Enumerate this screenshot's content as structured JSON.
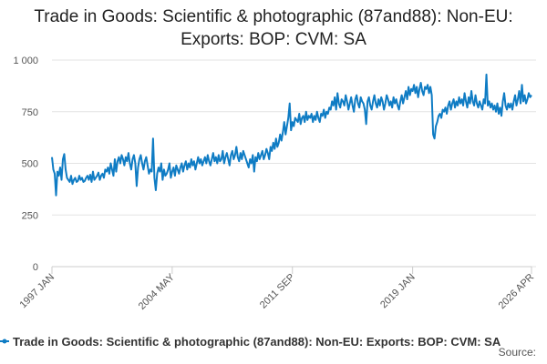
{
  "chart_data": {
    "type": "line",
    "title": "Trade in Goods: Scientific & photographic (87and88): Non-EU: Exports: BOP: CVM: SA",
    "source": "Source:",
    "categories": [
      "1997 JAN",
      null,
      null,
      null,
      null,
      null,
      null,
      null,
      null,
      null,
      null,
      null,
      null,
      null,
      null,
      null,
      null,
      null,
      null,
      null,
      null,
      null,
      null,
      null,
      null,
      null,
      null,
      null,
      null,
      null,
      null,
      null,
      null,
      null,
      null,
      null,
      null,
      null,
      null,
      null,
      null,
      null,
      null,
      null,
      null,
      null,
      null,
      null,
      null,
      null,
      null,
      null,
      null,
      null,
      null,
      null,
      null,
      null,
      null,
      null,
      null,
      null,
      null,
      null,
      null,
      null,
      null,
      null,
      null,
      null,
      null,
      null,
      null,
      null,
      null,
      null,
      null,
      null,
      null,
      null,
      null,
      null,
      null,
      null,
      null,
      null,
      null,
      null,
      "2004 MAY",
      null,
      null,
      null,
      null,
      null,
      null,
      null,
      null,
      null,
      null,
      null,
      null,
      null,
      null,
      null,
      null,
      null,
      null,
      null,
      null,
      null,
      null,
      null,
      null,
      null,
      null,
      null,
      null,
      null,
      null,
      null,
      null,
      null,
      null,
      null,
      null,
      null,
      null,
      null,
      null,
      null,
      null,
      null,
      null,
      null,
      null,
      null,
      null,
      null,
      null,
      null,
      null,
      null,
      null,
      null,
      null,
      null,
      null,
      null,
      null,
      null,
      null,
      null,
      null,
      null,
      null,
      null,
      null,
      null,
      null,
      null,
      null,
      null,
      null,
      null,
      null,
      null,
      null,
      null,
      null,
      null,
      null,
      null,
      null,
      null,
      null,
      null,
      "2011 SEP",
      null,
      null,
      null,
      null,
      null,
      null,
      null,
      null,
      null,
      null,
      null,
      null,
      null,
      null,
      null,
      null,
      null,
      null,
      null,
      null,
      null,
      null,
      null,
      null,
      null,
      null,
      null,
      null,
      null,
      null,
      null,
      null,
      null,
      null,
      null,
      null,
      null,
      null,
      null,
      null,
      null,
      null,
      null,
      null,
      null,
      null,
      null,
      null,
      null,
      null,
      null,
      null,
      null,
      null,
      null,
      null,
      null,
      null,
      null,
      null,
      null,
      null,
      null,
      null,
      null,
      null,
      null,
      null,
      null,
      null,
      null,
      null,
      null,
      null,
      null,
      null,
      null,
      null,
      null,
      null,
      null,
      null,
      null,
      null,
      null,
      null,
      null,
      "2019 JAN",
      null,
      null,
      null,
      null,
      null,
      null,
      null,
      null,
      null,
      null,
      null,
      null,
      null,
      null,
      null,
      null,
      null,
      null,
      null,
      null,
      null,
      null,
      null,
      null,
      null,
      null,
      null,
      null,
      null,
      null,
      null,
      null,
      null,
      null,
      null,
      null,
      null,
      null,
      null,
      null,
      null,
      null,
      null,
      null,
      null,
      null,
      null,
      null,
      null,
      null,
      null,
      null,
      null,
      null,
      null,
      null,
      null,
      null,
      null,
      null,
      null,
      null,
      null,
      null,
      null,
      null,
      null,
      null,
      null,
      null,
      null,
      null,
      null,
      null,
      null,
      null,
      null,
      null,
      null,
      null,
      null,
      null,
      null,
      null,
      null,
      null,
      "2026 APR"
    ],
    "series": [
      {
        "name": "Trade in Goods: Scientific & photographic (87and88): Non-EU: Exports: BOP: CVM: SA",
        "color": "#0f7cc4",
        "values": [
          530,
          470,
          450,
          345,
          460,
          440,
          480,
          420,
          520,
          545,
          470,
          430,
          420,
          410,
          440,
          400,
          420,
          430,
          410,
          415,
          440,
          420,
          430,
          410,
          415,
          430,
          440,
          420,
          445,
          410,
          460,
          420,
          430,
          440,
          455,
          420,
          440,
          450,
          430,
          470,
          460,
          480,
          450,
          500,
          470,
          440,
          520,
          460,
          510,
          530,
          500,
          540,
          520,
          490,
          530,
          510,
          550,
          500,
          470,
          520,
          540,
          500,
          390,
          480,
          520,
          540,
          500,
          470,
          510,
          530,
          490,
          450,
          470,
          460,
          620,
          430,
          370,
          450,
          480,
          460,
          500,
          420,
          470,
          440,
          450,
          470,
          500,
          430,
          460,
          480,
          440,
          490,
          470,
          450,
          480,
          500,
          460,
          490,
          510,
          470,
          500,
          480,
          520,
          490,
          510,
          470,
          500,
          530,
          500,
          520,
          490,
          510,
          530,
          500,
          540,
          510,
          490,
          520,
          550,
          510,
          530,
          500,
          540,
          510,
          520,
          560,
          500,
          530,
          550,
          520,
          490,
          540,
          560,
          520,
          540,
          580,
          530,
          510,
          550,
          520,
          560,
          540,
          520,
          500,
          480,
          520,
          500,
          540,
          460,
          530,
          510,
          550,
          520,
          540,
          560,
          520,
          540,
          570,
          550,
          520,
          580,
          560,
          600,
          570,
          620,
          580,
          600,
          640,
          610,
          650,
          700,
          640,
          680,
          720,
          790,
          660,
          700,
          680,
          720,
          710,
          700,
          740,
          690,
          720,
          730,
          700,
          750,
          710,
          730,
          720,
          740,
          700,
          730,
          710,
          750,
          720,
          700,
          740,
          730,
          760,
          720,
          750,
          740,
          770,
          760,
          800,
          780,
          820,
          760,
          840,
          790,
          770,
          810,
          800,
          780,
          830,
          800,
          760,
          790,
          820,
          780,
          750,
          810,
          830,
          790,
          770,
          820,
          800,
          790,
          760,
          690,
          800,
          820,
          780,
          760,
          800,
          830,
          790,
          770,
          810,
          780,
          820,
          800,
          760,
          790,
          830,
          810,
          780,
          800,
          770,
          820,
          790,
          810,
          780,
          760,
          800,
          830,
          790,
          820,
          850,
          810,
          870,
          830,
          860,
          850,
          880,
          840,
          870,
          820,
          860,
          890,
          850,
          830,
          870,
          860,
          880,
          840,
          870,
          830,
          640,
          620,
          680,
          700,
          730,
          740,
          720,
          760,
          750,
          770,
          740,
          780,
          800,
          760,
          790,
          810,
          770,
          800,
          780,
          820,
          790,
          810,
          780,
          840,
          800,
          770,
          820,
          790,
          850,
          800,
          780,
          830,
          790,
          770,
          800,
          780,
          760,
          810,
          790,
          930,
          780,
          800,
          770,
          790,
          760,
          780,
          750,
          790,
          740,
          770,
          730,
          800,
          840,
          780,
          760,
          790,
          770,
          790,
          760,
          800,
          830,
          780,
          810,
          850,
          790,
          880,
          800,
          830,
          790,
          810,
          840,
          820,
          830
        ]
      }
    ],
    "ylim": [
      0,
      1000
    ],
    "yticks": [
      0,
      250,
      500,
      750,
      {
        "value": 1000,
        "label": "1 000"
      }
    ],
    "grid": true
  }
}
